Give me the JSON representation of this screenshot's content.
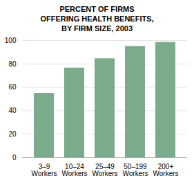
{
  "chart_data": {
    "type": "bar",
    "title": "PERCENT OF FIRMS\nOFFERING HEALTH BENEFITS,\nBY FIRM SIZE, 2003",
    "categories": [
      "3–9\nWorkers",
      "10–24\nWorkers",
      "25–49\nWorkers",
      "50–199\nWorkers",
      "200+\nWorkers"
    ],
    "values": [
      55,
      76.5,
      84.5,
      95,
      98.5
    ],
    "color": "#7aab8a",
    "ylim": [
      0,
      100
    ],
    "yticks": [
      0,
      20,
      40,
      60,
      80,
      100
    ],
    "grid": true
  }
}
